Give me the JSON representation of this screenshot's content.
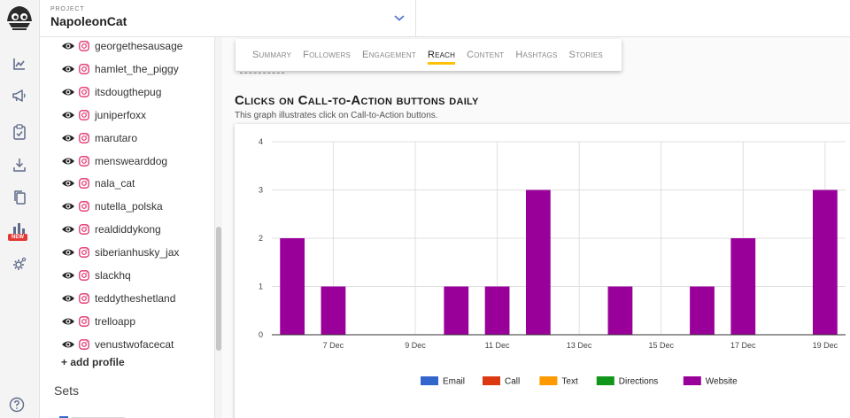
{
  "project": {
    "label": "PROJECT",
    "name": "NapoleonCat"
  },
  "rail": {
    "new_badge": "NEW"
  },
  "sidebar": {
    "profiles": [
      "georgethesausage",
      "hamlet_the_piggy",
      "itsdougthepug",
      "juniperfoxx",
      "marutaro",
      "menswearddog",
      "nala_cat",
      "nutella_polska",
      "realdiddykong",
      "siberianhusky_jax",
      "slackhq",
      "teddytheshetland",
      "trelloapp",
      "venustwofacecat"
    ],
    "add_profile": "+ add profile",
    "sets_heading": "Sets"
  },
  "tabs": [
    "Summary",
    "Followers",
    "Engagement",
    "Reach",
    "Content",
    "Hashtags",
    "Stories"
  ],
  "active_tab": "Reach",
  "section": {
    "title": "Clicks on Call-to-Action buttons daily",
    "subtitle": "This graph illustrates click on Call-to-Action buttons."
  },
  "colors": {
    "accent_yellow": "#ffc107",
    "instagram": "#e1306c",
    "series_email": "#3366cc",
    "series_call": "#dc3912",
    "series_text": "#ff9900",
    "series_directions": "#109618",
    "series_website": "#990099"
  },
  "icons": [
    "analytics-icon",
    "megaphone-icon",
    "clipboard-check-icon",
    "download-icon",
    "copy-icon",
    "report-icon",
    "gear-cog-icon",
    "help-icon",
    "eye-icon",
    "instagram-icon",
    "chevron-down-icon"
  ],
  "chart_data": {
    "type": "bar",
    "categories": [
      "6 Dec",
      "7 Dec",
      "8 Dec",
      "9 Dec",
      "10 Dec",
      "11 Dec",
      "12 Dec",
      "13 Dec",
      "14 Dec",
      "15 Dec",
      "16 Dec",
      "17 Dec",
      "18 Dec",
      "19 Dec"
    ],
    "x_tick_labels": [
      "7 Dec",
      "9 Dec",
      "11 Dec",
      "13 Dec",
      "15 Dec",
      "17 Dec",
      "19 Dec"
    ],
    "series": [
      {
        "name": "Email",
        "values": [
          0,
          0,
          0,
          0,
          0,
          0,
          0,
          0,
          0,
          0,
          0,
          0,
          0,
          0
        ]
      },
      {
        "name": "Call",
        "values": [
          0,
          0,
          0,
          0,
          0,
          0,
          0,
          0,
          0,
          0,
          0,
          0,
          0,
          0
        ]
      },
      {
        "name": "Text",
        "values": [
          0,
          0,
          0,
          0,
          0,
          0,
          0,
          0,
          0,
          0,
          0,
          0,
          0,
          0
        ]
      },
      {
        "name": "Directions",
        "values": [
          0,
          0,
          0,
          0,
          0,
          0,
          0,
          0,
          0,
          0,
          0,
          0,
          0,
          0
        ]
      },
      {
        "name": "Website",
        "values": [
          2,
          1,
          0,
          0,
          1,
          1,
          3,
          0,
          1,
          0,
          1,
          2,
          0,
          3
        ]
      }
    ],
    "y_ticks": [
      0,
      1,
      2,
      3,
      4
    ],
    "ylim": [
      0,
      4
    ],
    "grid": true,
    "legend_position": "bottom"
  }
}
